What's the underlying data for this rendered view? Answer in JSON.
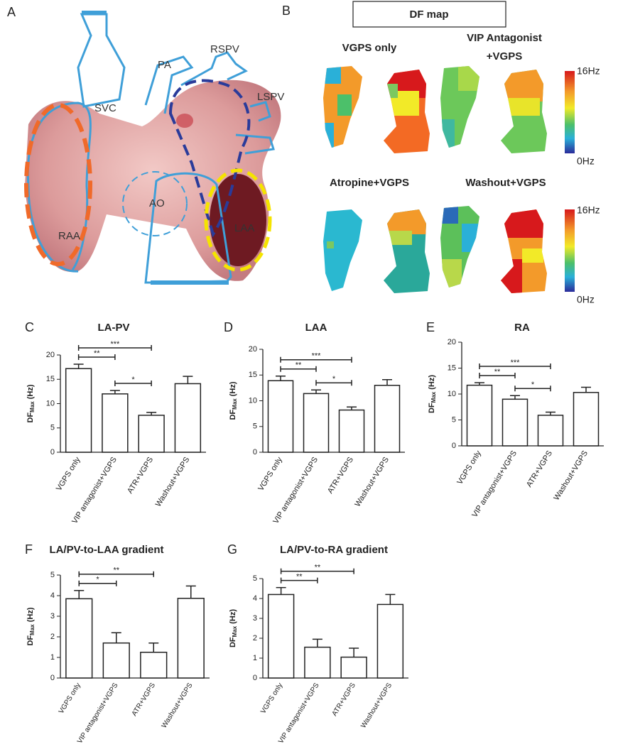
{
  "panel_a": {
    "label": "A",
    "structures": [
      "PA",
      "RSPV",
      "LSPV",
      "SVC",
      "AO",
      "RAA",
      "LAA"
    ]
  },
  "panel_b": {
    "label": "B",
    "title": "DF map",
    "maps": [
      {
        "title": [
          "VGPS only"
        ]
      },
      {
        "title": [
          "VIP Antagonist",
          "+VGPS"
        ]
      },
      {
        "title": [
          "Atropine+VGPS"
        ]
      },
      {
        "title": [
          "Washout+VGPS"
        ]
      }
    ],
    "colorbar": {
      "max_label": "16Hz",
      "min_label": "0Hz"
    }
  },
  "chart_data": [
    {
      "type": "bar",
      "panel": "C",
      "title": "LA-PV",
      "ylabel": "DF",
      "ylabel_subscript": "Max",
      "ylabel_unit": "(Hz)",
      "categories": [
        "VGPS only",
        "VIP antagonist+VGPS",
        "ATR+VGPS",
        "Washout+VGPS"
      ],
      "values": [
        17.2,
        12.0,
        7.6,
        14.1
      ],
      "errors": [
        0.9,
        0.7,
        0.6,
        1.5
      ],
      "color": "#ffffff",
      "ylim": [
        0,
        20
      ],
      "yticks": [
        0,
        5,
        10,
        15,
        20
      ],
      "annotations": [
        {
          "text": "**",
          "between": [
            0,
            1
          ]
        },
        {
          "text": "*",
          "between": [
            1,
            2
          ]
        },
        {
          "text": "***",
          "between": [
            0,
            2
          ]
        }
      ]
    },
    {
      "type": "bar",
      "panel": "D",
      "title": "LAA",
      "ylabel": "DF",
      "ylabel_subscript": "Max",
      "ylabel_unit": "(Hz)",
      "categories": [
        "VGPS only",
        "VIP antagonist+VGPS",
        "ATR+VGPS",
        "Washout+VGPS"
      ],
      "values": [
        13.9,
        11.4,
        8.2,
        13.0
      ],
      "errors": [
        0.9,
        0.7,
        0.6,
        1.1
      ],
      "color": "#ffffff",
      "ylim": [
        0,
        20
      ],
      "yticks": [
        0,
        5,
        10,
        15,
        20
      ],
      "annotations": [
        {
          "text": "**",
          "between": [
            0,
            1
          ]
        },
        {
          "text": "*",
          "between": [
            1,
            2
          ]
        },
        {
          "text": "***",
          "between": [
            0,
            2
          ]
        }
      ]
    },
    {
      "type": "bar",
      "panel": "E",
      "title": "RA",
      "ylabel": "DF",
      "ylabel_subscript": "Max",
      "ylabel_unit": "(Hz)",
      "categories": [
        "VGPS only",
        "VIP antagonist+VGPS",
        "ATR+VGPS",
        "Washout+VGPS"
      ],
      "values": [
        11.7,
        9.0,
        5.9,
        10.3
      ],
      "errors": [
        0.5,
        0.7,
        0.6,
        1.0
      ],
      "color": "#ffffff",
      "ylim": [
        0,
        20
      ],
      "yticks": [
        0,
        5,
        10,
        15,
        20
      ],
      "annotations": [
        {
          "text": "**",
          "between": [
            0,
            1
          ]
        },
        {
          "text": "*",
          "between": [
            1,
            2
          ]
        },
        {
          "text": "***",
          "between": [
            0,
            2
          ]
        }
      ]
    },
    {
      "type": "bar",
      "panel": "F",
      "title": "LA/PV-to-LAA gradient",
      "ylabel": "DF",
      "ylabel_subscript": "Max",
      "ylabel_unit": "(Hz)",
      "categories": [
        "VGPS only",
        "VIP antagonist+VGPS",
        "ATR+VGPS",
        "Washout+VGPS"
      ],
      "values": [
        3.85,
        1.7,
        1.25,
        3.87
      ],
      "errors": [
        0.4,
        0.5,
        0.45,
        0.6
      ],
      "color": "#ffffff",
      "ylim": [
        0,
        5
      ],
      "yticks": [
        0,
        1,
        2,
        3,
        4,
        5
      ],
      "annotations": [
        {
          "text": "*",
          "between": [
            0,
            1
          ]
        },
        {
          "text": "**",
          "between": [
            0,
            2
          ]
        }
      ]
    },
    {
      "type": "bar",
      "panel": "G",
      "title": "LA/PV-to-RA gradient",
      "ylabel": "DF",
      "ylabel_subscript": "Max",
      "ylabel_unit": "(Hz)",
      "categories": [
        "VGPS only",
        "VIP antagonist+VGPS",
        "ATR+VGPS",
        "Washout+VGPS"
      ],
      "values": [
        4.2,
        1.55,
        1.05,
        3.7
      ],
      "errors": [
        0.35,
        0.4,
        0.45,
        0.5
      ],
      "color": "#ffffff",
      "ylim": [
        0,
        5
      ],
      "yticks": [
        0,
        1,
        2,
        3,
        4,
        5
      ],
      "annotations": [
        {
          "text": "**",
          "between": [
            0,
            1
          ]
        },
        {
          "text": "**",
          "between": [
            0,
            2
          ]
        }
      ]
    }
  ]
}
